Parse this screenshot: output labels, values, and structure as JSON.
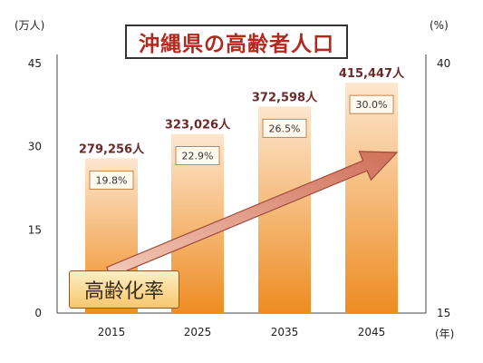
{
  "title": "沖縄県の高齢者人口",
  "rate_label": "高齢化率",
  "chart_data": {
    "type": "bar",
    "categories": [
      "2015",
      "2025",
      "2035",
      "2045"
    ],
    "series": [
      {
        "values": [
          279256,
          323026,
          372598,
          415447
        ],
        "value_labels": [
          "279,256人",
          "323,026人",
          "372,598人",
          "415,447人"
        ]
      },
      {
        "values": [
          19.8,
          22.9,
          26.5,
          30.0
        ],
        "value_labels": [
          "19.8%",
          "22.9%",
          "26.5%",
          "30.0%"
        ]
      }
    ],
    "left_axis": {
      "unit_label": "(万人)",
      "ticks": [
        0,
        15,
        30,
        45
      ],
      "range": [
        0,
        45
      ]
    },
    "right_axis": {
      "unit_label": "(%)",
      "ticks": [
        15,
        40
      ],
      "range": [
        15,
        40
      ]
    },
    "x_unit_label": "(年)",
    "colors": {
      "bar_top": "#fde7cf",
      "bar_bottom": "#ee8c22",
      "value_label": "#6b2a2a",
      "arrow": "#d27b63"
    }
  }
}
